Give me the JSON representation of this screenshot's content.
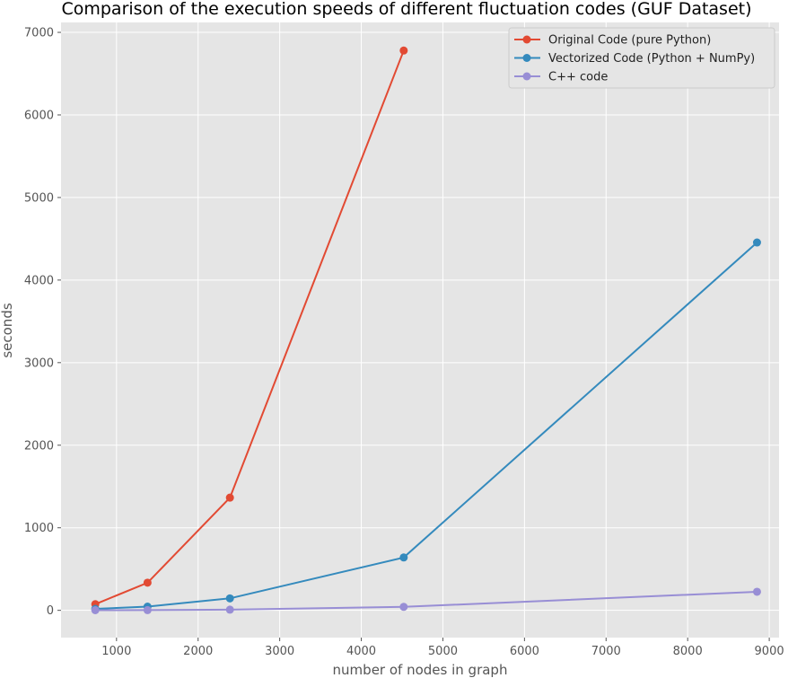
{
  "chart_data": {
    "type": "line",
    "title": "Comparison of the execution speeds of different fluctuation codes (GUF Dataset)",
    "xlabel": "number of nodes in graph",
    "ylabel": "seconds",
    "xlim": [
      320,
      9120
    ],
    "ylim": [
      -330,
      7120
    ],
    "xticks": [
      1000,
      2000,
      3000,
      4000,
      5000,
      6000,
      7000,
      8000,
      9000
    ],
    "yticks": [
      0,
      1000,
      2000,
      3000,
      4000,
      5000,
      6000,
      7000
    ],
    "grid": true,
    "legend_position": "top-right",
    "series": [
      {
        "name": "Original Code (pure Python)",
        "color": "#E24A33",
        "x": [
          740,
          1380,
          2390,
          4520
        ],
        "y": [
          75,
          335,
          1365,
          6780
        ]
      },
      {
        "name": "Vectorized Code (Python + NumPy)",
        "color": "#348ABD",
        "x": [
          740,
          1380,
          2390,
          4520,
          8850
        ],
        "y": [
          18,
          45,
          145,
          640,
          4455
        ]
      },
      {
        "name": "C++ code",
        "color": "#988ED5",
        "x": [
          740,
          1380,
          2390,
          4520,
          8850
        ],
        "y": [
          2,
          3,
          8,
          42,
          225
        ]
      }
    ]
  }
}
